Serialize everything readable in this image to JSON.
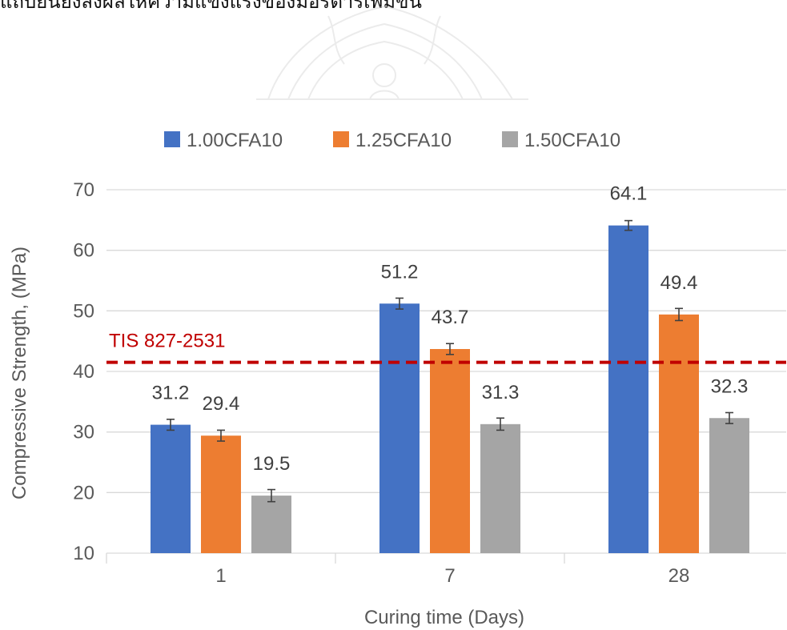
{
  "header_text": "แถบยืนยังส่งผลให้ความแข็งแรงของมอร์ตาร์เพิ่มขึ้น",
  "chart_data": {
    "type": "bar",
    "categories": [
      "1",
      "7",
      "28"
    ],
    "series": [
      {
        "name": "1.00CFA10",
        "color": "#4472C4",
        "values": [
          31.2,
          51.2,
          64.1
        ],
        "error": [
          0.9,
          0.9,
          0.8
        ]
      },
      {
        "name": "1.25CFA10",
        "color": "#ED7D31",
        "values": [
          29.4,
          43.7,
          49.4
        ],
        "error": [
          0.9,
          0.9,
          1.0
        ]
      },
      {
        "name": "1.50CFA10",
        "color": "#A5A5A5",
        "values": [
          19.5,
          31.3,
          32.3
        ],
        "error": [
          1.0,
          1.0,
          0.9
        ]
      }
    ],
    "data_labels": true,
    "xlabel": "Curing time (Days)",
    "ylabel": "Compressive Strength, (MPa)",
    "ylim": [
      10,
      70
    ],
    "yticks": [
      10,
      20,
      30,
      40,
      50,
      60,
      70
    ],
    "grid": true,
    "legend": "top",
    "reference_line": {
      "label": "TIS 827-2531",
      "value": 41.5,
      "color": "#C00000",
      "style": "dashed"
    }
  }
}
